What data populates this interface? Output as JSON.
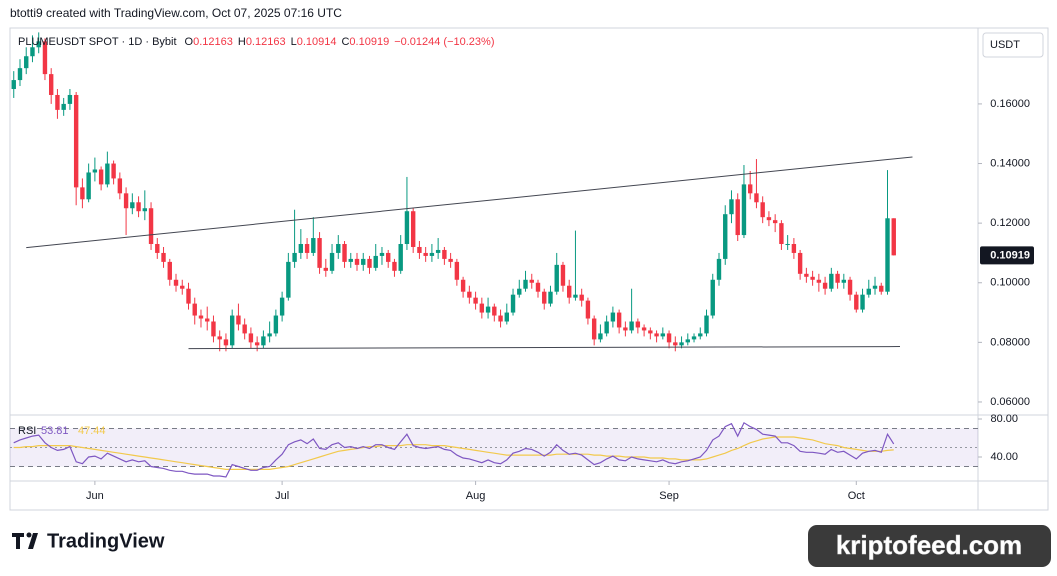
{
  "credit": "btotti9 created with TradingView.com, Oct 07, 2025 07:16 UTC",
  "footer": {
    "brand": "TradingView",
    "watermark": "kriptofeed.com"
  },
  "chart_data": {
    "type": "candlestick",
    "title": "PLUMEUSDT SPOT · 1D · Bybit",
    "ohlc_labels": [
      "O",
      "H",
      "L",
      "C"
    ],
    "change": "−0.01244 (−10.23%)",
    "currency": "USDT",
    "up_color": "#089981",
    "down_color": "#f23645",
    "x": [
      0,
      1,
      2,
      3,
      4,
      5,
      6,
      7,
      8,
      9,
      10,
      11,
      12,
      13,
      14,
      15,
      16,
      17,
      18,
      19,
      20,
      21,
      22,
      23,
      24,
      25,
      26,
      27,
      28,
      29,
      30,
      31,
      32,
      33,
      34,
      35,
      36,
      37,
      38,
      39,
      40,
      41,
      42,
      43,
      44,
      45,
      46,
      47,
      48,
      49,
      50,
      51,
      52,
      53,
      54,
      55,
      56,
      57,
      58,
      59,
      60,
      61,
      62,
      63,
      64,
      65,
      66,
      67,
      68,
      69,
      70,
      71,
      72,
      73,
      74,
      75,
      76,
      77,
      78,
      79,
      80,
      81,
      82,
      83,
      84,
      85,
      86,
      87,
      88,
      89,
      90,
      91,
      92,
      93,
      94,
      95,
      96,
      97,
      98,
      99,
      100,
      101,
      102,
      103,
      104,
      105,
      106,
      107,
      108,
      109,
      110,
      111,
      112,
      113,
      114,
      115,
      116,
      117,
      118,
      119,
      120,
      121,
      122,
      123,
      124,
      125,
      126,
      127,
      128,
      129,
      130,
      131,
      132,
      133,
      134,
      135,
      136,
      137,
      138,
      139,
      140,
      141
    ],
    "open": [
      0.165,
      0.168,
      0.172,
      0.176,
      0.179,
      0.181,
      0.17,
      0.163,
      0.158,
      0.16,
      0.163,
      0.132,
      0.128,
      0.137,
      0.138,
      0.133,
      0.14,
      0.135,
      0.13,
      0.125,
      0.127,
      0.124,
      0.125,
      0.113,
      0.11,
      0.107,
      0.101,
      0.099,
      0.098,
      0.093,
      0.089,
      0.088,
      0.087,
      0.082,
      0.081,
      0.079,
      0.089,
      0.086,
      0.083,
      0.08,
      0.079,
      0.082,
      0.083,
      0.089,
      0.095,
      0.107,
      0.11,
      0.113,
      0.11,
      0.115,
      0.105,
      0.104,
      0.11,
      0.113,
      0.107,
      0.108,
      0.106,
      0.108,
      0.105,
      0.109,
      0.11,
      0.107,
      0.104,
      0.113,
      0.124,
      0.112,
      0.11,
      0.109,
      0.11,
      0.111,
      0.108,
      0.107,
      0.101,
      0.097,
      0.095,
      0.093,
      0.09,
      0.092,
      0.089,
      0.087,
      0.09,
      0.096,
      0.098,
      0.101,
      0.1,
      0.097,
      0.093,
      0.097,
      0.106,
      0.099,
      0.095,
      0.096,
      0.094,
      0.088,
      0.081,
      0.083,
      0.087,
      0.09,
      0.085,
      0.084,
      0.087,
      0.085,
      0.084,
      0.083,
      0.082,
      0.083,
      0.08,
      0.079,
      0.08,
      0.081,
      0.082,
      0.083,
      0.089,
      0.101,
      0.108,
      0.123,
      0.128,
      0.116,
      0.133,
      0.13,
      0.127,
      0.122,
      0.121,
      0.12,
      0.113,
      0.113,
      0.11,
      0.103,
      0.102,
      0.101,
      0.1,
      0.098,
      0.103,
      0.1,
      0.101,
      0.096,
      0.091,
      0.096,
      0.098,
      0.099,
      0.097,
      0.12163
    ],
    "high": [
      0.171,
      0.175,
      0.179,
      0.183,
      0.184,
      0.182,
      0.172,
      0.165,
      0.162,
      0.165,
      0.164,
      0.135,
      0.14,
      0.142,
      0.139,
      0.144,
      0.141,
      0.137,
      0.132,
      0.13,
      0.129,
      0.131,
      0.127,
      0.115,
      0.112,
      0.108,
      0.103,
      0.101,
      0.1,
      0.095,
      0.091,
      0.092,
      0.089,
      0.084,
      0.083,
      0.091,
      0.093,
      0.088,
      0.085,
      0.082,
      0.084,
      0.087,
      0.091,
      0.097,
      0.11,
      0.1245,
      0.118,
      0.115,
      0.122,
      0.117,
      0.108,
      0.113,
      0.116,
      0.114,
      0.11,
      0.11,
      0.11,
      0.109,
      0.113,
      0.112,
      0.111,
      0.108,
      0.116,
      0.1355,
      0.125,
      0.114,
      0.112,
      0.113,
      0.115,
      0.112,
      0.11,
      0.108,
      0.102,
      0.099,
      0.097,
      0.095,
      0.095,
      0.093,
      0.091,
      0.093,
      0.098,
      0.101,
      0.104,
      0.103,
      0.101,
      0.098,
      0.099,
      0.11,
      0.107,
      0.101,
      0.1175,
      0.098,
      0.095,
      0.089,
      0.086,
      0.089,
      0.092,
      0.091,
      0.087,
      0.098,
      0.088,
      0.086,
      0.085,
      0.084,
      0.085,
      0.084,
      0.082,
      0.082,
      0.083,
      0.083,
      0.085,
      0.091,
      0.103,
      0.11,
      0.126,
      0.131,
      0.13,
      0.1395,
      0.1375,
      0.1415,
      0.129,
      0.124,
      0.123,
      0.121,
      0.116,
      0.115,
      0.111,
      0.105,
      0.104,
      0.103,
      0.102,
      0.105,
      0.104,
      0.103,
      0.102,
      0.097,
      0.098,
      0.101,
      0.102,
      0.1,
      0.1378,
      0.12163
    ],
    "low": [
      0.162,
      0.166,
      0.17,
      0.174,
      0.177,
      0.168,
      0.16,
      0.155,
      0.156,
      0.158,
      0.126,
      0.125,
      0.127,
      0.134,
      0.131,
      0.132,
      0.133,
      0.128,
      0.116,
      0.123,
      0.122,
      0.121,
      0.111,
      0.108,
      0.105,
      0.099,
      0.097,
      0.096,
      0.091,
      0.086,
      0.085,
      0.084,
      0.08,
      0.077,
      0.077,
      0.078,
      0.084,
      0.081,
      0.078,
      0.077,
      0.078,
      0.08,
      0.082,
      0.087,
      0.094,
      0.105,
      0.108,
      0.108,
      0.109,
      0.103,
      0.102,
      0.103,
      0.108,
      0.105,
      0.105,
      0.104,
      0.104,
      0.103,
      0.104,
      0.106,
      0.105,
      0.102,
      0.103,
      0.111,
      0.11,
      0.108,
      0.107,
      0.107,
      0.108,
      0.106,
      0.105,
      0.099,
      0.095,
      0.093,
      0.091,
      0.088,
      0.088,
      0.087,
      0.085,
      0.086,
      0.089,
      0.095,
      0.097,
      0.098,
      0.095,
      0.091,
      0.092,
      0.096,
      0.097,
      0.093,
      0.094,
      0.092,
      0.086,
      0.079,
      0.08,
      0.082,
      0.085,
      0.083,
      0.082,
      0.083,
      0.083,
      0.082,
      0.081,
      0.08,
      0.081,
      0.078,
      0.077,
      0.078,
      0.079,
      0.08,
      0.081,
      0.082,
      0.088,
      0.099,
      0.106,
      0.12,
      0.114,
      0.115,
      0.128,
      0.125,
      0.12,
      0.119,
      0.117,
      0.111,
      0.111,
      0.108,
      0.101,
      0.1,
      0.099,
      0.097,
      0.096,
      0.097,
      0.098,
      0.098,
      0.094,
      0.09,
      0.09,
      0.095,
      0.096,
      0.096,
      0.096,
      0.10914
    ],
    "close": [
      0.168,
      0.172,
      0.176,
      0.179,
      0.181,
      0.17,
      0.163,
      0.158,
      0.16,
      0.163,
      0.132,
      0.128,
      0.137,
      0.138,
      0.133,
      0.14,
      0.135,
      0.13,
      0.125,
      0.127,
      0.124,
      0.125,
      0.113,
      0.11,
      0.107,
      0.101,
      0.099,
      0.098,
      0.093,
      0.089,
      0.088,
      0.087,
      0.082,
      0.081,
      0.079,
      0.089,
      0.086,
      0.083,
      0.08,
      0.079,
      0.082,
      0.083,
      0.089,
      0.095,
      0.107,
      0.11,
      0.113,
      0.11,
      0.115,
      0.105,
      0.104,
      0.11,
      0.113,
      0.107,
      0.108,
      0.106,
      0.108,
      0.105,
      0.109,
      0.11,
      0.107,
      0.104,
      0.113,
      0.124,
      0.112,
      0.11,
      0.109,
      0.11,
      0.111,
      0.108,
      0.107,
      0.101,
      0.097,
      0.095,
      0.093,
      0.09,
      0.092,
      0.089,
      0.087,
      0.09,
      0.096,
      0.098,
      0.101,
      0.1,
      0.097,
      0.093,
      0.097,
      0.106,
      0.099,
      0.095,
      0.096,
      0.094,
      0.088,
      0.081,
      0.083,
      0.087,
      0.09,
      0.085,
      0.084,
      0.087,
      0.085,
      0.084,
      0.083,
      0.082,
      0.083,
      0.08,
      0.079,
      0.08,
      0.081,
      0.082,
      0.083,
      0.089,
      0.101,
      0.108,
      0.123,
      0.128,
      0.116,
      0.133,
      0.13,
      0.127,
      0.122,
      0.121,
      0.12,
      0.113,
      0.113,
      0.11,
      0.103,
      0.102,
      0.101,
      0.1,
      0.098,
      0.103,
      0.1,
      0.101,
      0.096,
      0.091,
      0.096,
      0.098,
      0.099,
      0.097,
      0.12163,
      0.10919
    ],
    "xlim": [
      -0.6,
      154.5
    ],
    "xticks": [
      {
        "value": 13,
        "label": "Jun"
      },
      {
        "value": 43,
        "label": "Jul"
      },
      {
        "value": 74,
        "label": "Aug"
      },
      {
        "value": 105,
        "label": "Sep"
      },
      {
        "value": 135,
        "label": "Oct"
      }
    ],
    "ylim": [
      0.0563,
      0.1848
    ],
    "yticks": [
      {
        "value": 0.06,
        "label": "0.06000"
      },
      {
        "value": 0.08,
        "label": "0.08000"
      },
      {
        "value": 0.1,
        "label": "0.10000"
      },
      {
        "value": 0.12,
        "label": "0.12000"
      },
      {
        "value": 0.14,
        "label": "0.14000"
      },
      {
        "value": 0.16,
        "label": "0.16000"
      }
    ],
    "grid": false,
    "trendlines": [
      {
        "color": "#434651",
        "x": [
          2,
          144
        ],
        "y": [
          0.1118,
          0.1422
        ]
      },
      {
        "color": "#434651",
        "x": [
          28,
          142
        ],
        "y": [
          0.0779,
          0.0786
        ]
      }
    ],
    "rsi": {
      "type": "line",
      "label": "RSI",
      "ylim": [
        15.8,
        82.1
      ],
      "yticks": [
        {
          "value": 80,
          "label": "80.00"
        },
        {
          "value": 40,
          "label": "40.00"
        }
      ],
      "bands": [
        30,
        70
      ],
      "midline": 50,
      "series": [
        {
          "color": "#7e57c2",
          "values": [
            55,
            58,
            60,
            62,
            63,
            55,
            50,
            47,
            48,
            51,
            35,
            33,
            40,
            41,
            38,
            44,
            41,
            38,
            35,
            37,
            35,
            36,
            30,
            29,
            28,
            26,
            25,
            25,
            23,
            22,
            22,
            22,
            20,
            20,
            19,
            32,
            30,
            28,
            26,
            26,
            29,
            30,
            37,
            43,
            53,
            56,
            58,
            54,
            59,
            49,
            48,
            53,
            55,
            50,
            51,
            49,
            51,
            49,
            53,
            53,
            50,
            48,
            56,
            64,
            52,
            50,
            49,
            50,
            51,
            48,
            47,
            42,
            39,
            38,
            36,
            34,
            37,
            34,
            33,
            37,
            44,
            46,
            49,
            48,
            45,
            41,
            45,
            53,
            47,
            43,
            44,
            42,
            37,
            32,
            34,
            38,
            41,
            37,
            36,
            40,
            38,
            37,
            36,
            35,
            37,
            34,
            33,
            35,
            36,
            38,
            40,
            47,
            58,
            62,
            72,
            75,
            62,
            76,
            72,
            69,
            64,
            63,
            62,
            55,
            55,
            52,
            46,
            45,
            45,
            44,
            43,
            48,
            45,
            46,
            42,
            38,
            44,
            46,
            47,
            45,
            64,
            53.81
          ]
        },
        {
          "color": "#f2c94c",
          "values": [
            50,
            50,
            51,
            51,
            52,
            52,
            52,
            52,
            52,
            52,
            51,
            50,
            49,
            48,
            47,
            46,
            45,
            44,
            43,
            42,
            41,
            40,
            39,
            38,
            37,
            36,
            35,
            34,
            33,
            32,
            31,
            30,
            29,
            28,
            27,
            27,
            27,
            27,
            27,
            27,
            27,
            27,
            28,
            29,
            30,
            32,
            34,
            36,
            38,
            40,
            42,
            44,
            46,
            47,
            48,
            49,
            50,
            51,
            51,
            52,
            52,
            52,
            52,
            53,
            53,
            53,
            53,
            52,
            52,
            52,
            51,
            50,
            49,
            48,
            47,
            46,
            45,
            44,
            43,
            42,
            42,
            42,
            42,
            42,
            42,
            42,
            42,
            43,
            43,
            43,
            43,
            43,
            43,
            42,
            42,
            41,
            41,
            41,
            40,
            40,
            40,
            40,
            39,
            39,
            39,
            38,
            38,
            37,
            37,
            37,
            37,
            38,
            40,
            42,
            44,
            47,
            49,
            52,
            55,
            57,
            59,
            60,
            61,
            61,
            61,
            61,
            60,
            59,
            58,
            56,
            54,
            53,
            52,
            50,
            49,
            48,
            47,
            46,
            46,
            46,
            47,
            47.44
          ]
        }
      ]
    }
  }
}
